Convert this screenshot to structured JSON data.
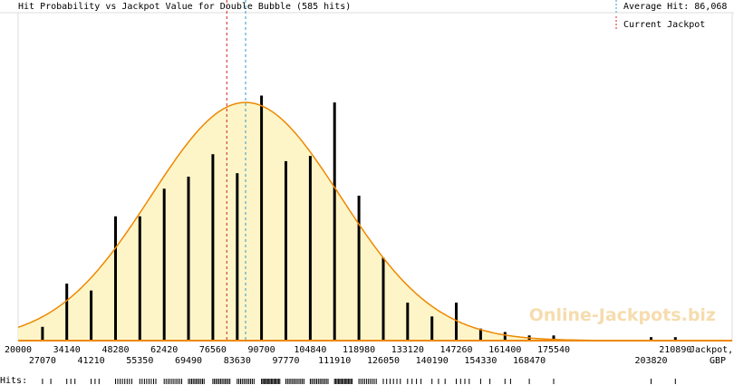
{
  "chart_data": {
    "type": "bar",
    "title": "Hit Probability vs Jackpot Value for Double Bubble (585 hits)",
    "x_axis_label_line1": "Jackpot,",
    "x_axis_label_line2": "GBP",
    "hits_label": "Hits:",
    "watermark": "Online-Jackpots.biz",
    "xlim": [
      20000,
      228000
    ],
    "tick_labels_top": [
      "20000",
      "34140",
      "48280",
      "62420",
      "76560",
      "90700",
      "104840",
      "118980",
      "133120",
      "147260",
      "161400",
      "175540",
      "210890"
    ],
    "tick_values_top": [
      20000,
      34140,
      48280,
      62420,
      76560,
      90700,
      104840,
      118980,
      133120,
      147260,
      161400,
      175540,
      210890
    ],
    "tick_labels_bottom": [
      "27070",
      "41210",
      "55350",
      "69490",
      "83630",
      "97770",
      "111910",
      "126050",
      "140190",
      "154330",
      "168470",
      "203820"
    ],
    "tick_values_bottom": [
      27070,
      41210,
      55350,
      69490,
      83630,
      97770,
      111910,
      126050,
      140190,
      154330,
      168470,
      203820
    ],
    "bars": {
      "x": [
        27070,
        34140,
        41210,
        48280,
        55350,
        62420,
        69490,
        76560,
        83630,
        90700,
        97770,
        104840,
        111910,
        118980,
        126050,
        133120,
        140190,
        147260,
        154330,
        161400,
        168470,
        175540,
        203820,
        210890
      ],
      "values": [
        8,
        33,
        29,
        72,
        72,
        88,
        95,
        108,
        97,
        142,
        104,
        107,
        138,
        84,
        48,
        22,
        14,
        22,
        7,
        5,
        3,
        3,
        2,
        2
      ]
    },
    "curve": {
      "type": "normal",
      "mean": 86068,
      "sd": 27500,
      "peak": 138
    },
    "ylim": [
      0,
      190
    ],
    "reference_lines": [
      {
        "name": "Average Hit: 86,068",
        "value": 86068,
        "color": "#3399cc",
        "style": "dashed"
      },
      {
        "name": "Current Jackpot",
        "value": 80600,
        "color": "#cc2222",
        "style": "dashed"
      }
    ],
    "hit_ticks": [
      {
        "from": 27070,
        "to": 29500,
        "n": 2
      },
      {
        "from": 34140,
        "to": 36500,
        "n": 3
      },
      {
        "from": 41210,
        "to": 43500,
        "n": 3
      },
      {
        "from": 48280,
        "to": 53000,
        "n": 8
      },
      {
        "from": 55350,
        "to": 60000,
        "n": 8
      },
      {
        "from": 62420,
        "to": 67500,
        "n": 10
      },
      {
        "from": 69490,
        "to": 74000,
        "n": 11
      },
      {
        "from": 76560,
        "to": 81500,
        "n": 12
      },
      {
        "from": 83630,
        "to": 88500,
        "n": 11
      },
      {
        "from": 90700,
        "to": 96000,
        "n": 16
      },
      {
        "from": 97770,
        "to": 103000,
        "n": 12
      },
      {
        "from": 104840,
        "to": 110000,
        "n": 12
      },
      {
        "from": 111910,
        "to": 117000,
        "n": 15
      },
      {
        "from": 118980,
        "to": 124000,
        "n": 10
      },
      {
        "from": 126050,
        "to": 131000,
        "n": 6
      },
      {
        "from": 133120,
        "to": 137000,
        "n": 4
      },
      {
        "from": 140190,
        "to": 144000,
        "n": 3
      },
      {
        "from": 147260,
        "to": 151000,
        "n": 4
      },
      {
        "from": 154330,
        "to": 157000,
        "n": 2
      },
      {
        "from": 161400,
        "to": 163000,
        "n": 2
      },
      {
        "from": 168470,
        "to": 169500,
        "n": 1
      },
      {
        "from": 175540,
        "to": 176500,
        "n": 1
      },
      {
        "from": 203820,
        "to": 204500,
        "n": 1
      },
      {
        "from": 210890,
        "to": 211500,
        "n": 1
      }
    ],
    "colors": {
      "bar": "#000000",
      "curve": "#ee8800",
      "fill": "#fdf5c8",
      "axis": "#ee8800",
      "frame": "#dddddd"
    },
    "grid": false,
    "legend_position": "top-right"
  }
}
